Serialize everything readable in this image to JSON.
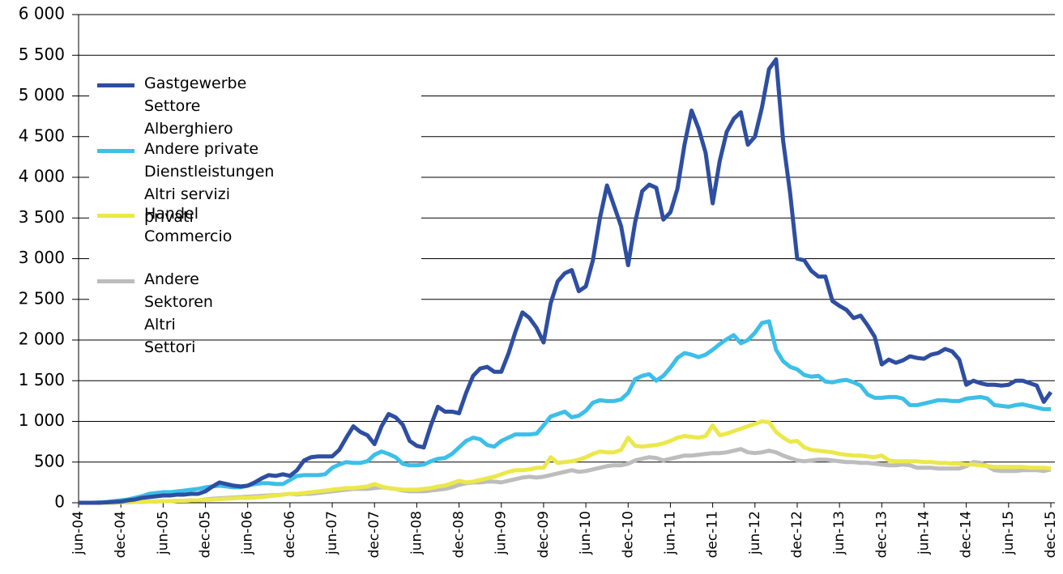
{
  "chart_data": {
    "type": "line",
    "categories": [
      "jun-04",
      null,
      null,
      null,
      null,
      null,
      "dec-04",
      null,
      null,
      null,
      null,
      null,
      "jun-05",
      null,
      null,
      null,
      null,
      null,
      "dec-05",
      null,
      null,
      null,
      null,
      null,
      "jun-06",
      null,
      null,
      null,
      null,
      null,
      "dec-06",
      null,
      null,
      null,
      null,
      null,
      "jun-07",
      null,
      null,
      null,
      null,
      null,
      "dec-07",
      null,
      null,
      null,
      null,
      null,
      "jun-08",
      null,
      null,
      null,
      null,
      null,
      "dec-08",
      null,
      null,
      null,
      null,
      null,
      "jun-09",
      null,
      null,
      null,
      null,
      null,
      "dec-09",
      null,
      null,
      null,
      null,
      null,
      "jun-10",
      null,
      null,
      null,
      null,
      null,
      "dec-10",
      null,
      null,
      null,
      null,
      null,
      "jun-11",
      null,
      null,
      null,
      null,
      null,
      "dec-11",
      null,
      null,
      null,
      null,
      null,
      "jun-12",
      null,
      null,
      null,
      null,
      null,
      "dec-12",
      null,
      null,
      null,
      null,
      null,
      "jun-13",
      null,
      null,
      null,
      null,
      null,
      "dec-13",
      null,
      null,
      null,
      null,
      null,
      "jun-14",
      null,
      null,
      null,
      null,
      null,
      "dec-14",
      null,
      null,
      null,
      null,
      null,
      "jun-15",
      null,
      null,
      null,
      null,
      null,
      "dec-15"
    ],
    "series": [
      {
        "name": "Andere Sektoren\nAltri Settori",
        "color": "#bdbdbd",
        "values": [
          0,
          0,
          0,
          0,
          0,
          0,
          5,
          5,
          10,
          10,
          15,
          15,
          20,
          20,
          25,
          25,
          30,
          30,
          40,
          50,
          55,
          60,
          65,
          70,
          75,
          80,
          85,
          90,
          95,
          100,
          110,
          100,
          110,
          110,
          120,
          130,
          140,
          150,
          160,
          170,
          170,
          170,
          180,
          190,
          180,
          170,
          150,
          140,
          140,
          140,
          150,
          160,
          170,
          190,
          220,
          240,
          250,
          250,
          260,
          260,
          250,
          270,
          290,
          310,
          320,
          310,
          320,
          340,
          360,
          380,
          400,
          380,
          390,
          410,
          430,
          450,
          460,
          460,
          480,
          520,
          540,
          560,
          550,
          520,
          540,
          560,
          580,
          580,
          590,
          600,
          610,
          610,
          620,
          640,
          660,
          620,
          610,
          620,
          640,
          620,
          580,
          550,
          520,
          510,
          520,
          530,
          530,
          520,
          510,
          500,
          500,
          490,
          490,
          480,
          470,
          460,
          460,
          470,
          460,
          430,
          430,
          430,
          420,
          420,
          420,
          420,
          450,
          500,
          490,
          450,
          400,
          390,
          390,
          390,
          400,
          400,
          400,
          390,
          410
        ]
      },
      {
        "name": "Handel\nCommercio",
        "color": "#ebe84a",
        "values": [
          0,
          0,
          0,
          0,
          0,
          5,
          5,
          10,
          10,
          15,
          15,
          20,
          20,
          20,
          25,
          25,
          30,
          30,
          35,
          40,
          45,
          50,
          55,
          60,
          60,
          65,
          70,
          80,
          90,
          100,
          110,
          110,
          120,
          130,
          140,
          150,
          160,
          170,
          180,
          180,
          190,
          200,
          230,
          200,
          180,
          170,
          160,
          160,
          160,
          170,
          180,
          200,
          210,
          240,
          270,
          250,
          260,
          280,
          300,
          320,
          350,
          380,
          400,
          400,
          410,
          430,
          430,
          560,
          490,
          500,
          510,
          530,
          560,
          600,
          630,
          620,
          620,
          650,
          800,
          700,
          690,
          700,
          710,
          730,
          760,
          800,
          820,
          810,
          800,
          820,
          950,
          830,
          850,
          880,
          910,
          940,
          970,
          1000,
          990,
          870,
          800,
          750,
          760,
          680,
          650,
          640,
          630,
          620,
          600,
          590,
          580,
          580,
          570,
          560,
          580,
          520,
          510,
          510,
          510,
          510,
          500,
          500,
          490,
          490,
          480,
          480,
          470,
          470,
          460,
          450,
          440,
          440,
          440,
          440,
          440,
          430,
          430,
          430,
          420
        ]
      },
      {
        "name": "Andere private Dienstleistungen\nAltri servizi privati",
        "color": "#3cbfe8",
        "values": [
          0,
          0,
          0,
          5,
          10,
          20,
          30,
          40,
          60,
          80,
          110,
          120,
          130,
          130,
          140,
          150,
          160,
          170,
          190,
          200,
          210,
          200,
          190,
          190,
          210,
          230,
          240,
          240,
          230,
          230,
          280,
          330,
          340,
          340,
          340,
          350,
          430,
          470,
          500,
          490,
          490,
          510,
          590,
          630,
          600,
          560,
          480,
          460,
          460,
          470,
          510,
          540,
          550,
          600,
          680,
          760,
          800,
          780,
          710,
          690,
          760,
          800,
          840,
          840,
          840,
          850,
          950,
          1060,
          1090,
          1120,
          1050,
          1070,
          1130,
          1230,
          1260,
          1250,
          1250,
          1270,
          1350,
          1520,
          1560,
          1580,
          1500,
          1560,
          1660,
          1780,
          1840,
          1820,
          1790,
          1820,
          1880,
          1950,
          2010,
          2060,
          1960,
          2000,
          2090,
          2210,
          2230,
          1880,
          1740,
          1670,
          1640,
          1570,
          1550,
          1560,
          1490,
          1480,
          1500,
          1510,
          1480,
          1440,
          1330,
          1290,
          1290,
          1300,
          1300,
          1280,
          1200,
          1200,
          1220,
          1240,
          1260,
          1260,
          1250,
          1250,
          1280,
          1290,
          1300,
          1280,
          1200,
          1190,
          1180,
          1200,
          1210,
          1190,
          1170,
          1150,
          1150
        ]
      },
      {
        "name": "Gastgewerbe\nSettore Alberghiero",
        "color": "#2e4ea1",
        "values": [
          0,
          0,
          0,
          0,
          5,
          10,
          15,
          30,
          40,
          60,
          70,
          80,
          90,
          90,
          100,
          100,
          110,
          110,
          140,
          200,
          250,
          230,
          210,
          200,
          210,
          250,
          300,
          340,
          330,
          350,
          330,
          400,
          520,
          560,
          570,
          570,
          570,
          650,
          800,
          940,
          870,
          830,
          720,
          940,
          1090,
          1050,
          960,
          760,
          700,
          680,
          950,
          1180,
          1120,
          1120,
          1100,
          1350,
          1560,
          1650,
          1670,
          1610,
          1610,
          1830,
          2100,
          2340,
          2270,
          2150,
          1970,
          2450,
          2720,
          2820,
          2860,
          2600,
          2660,
          2980,
          3500,
          3900,
          3650,
          3400,
          2920,
          3450,
          3830,
          3910,
          3870,
          3480,
          3570,
          3860,
          4400,
          4820,
          4600,
          4300,
          3680,
          4200,
          4560,
          4720,
          4800,
          4400,
          4500,
          4860,
          5330,
          5450,
          4450,
          3800,
          3000,
          2980,
          2850,
          2780,
          2780,
          2480,
          2420,
          2370,
          2270,
          2300,
          2180,
          2040,
          1700,
          1760,
          1720,
          1750,
          1800,
          1780,
          1770,
          1820,
          1840,
          1890,
          1860,
          1760,
          1450,
          1500,
          1470,
          1450,
          1450,
          1440,
          1450,
          1500,
          1500,
          1470,
          1440,
          1240,
          1360
        ]
      }
    ],
    "ylim": [
      0,
      6000
    ],
    "yticks": [
      0,
      500,
      {
        "value": 1000,
        "label": "1 000"
      },
      {
        "value": 1500,
        "label": "1 500"
      },
      {
        "value": 2000,
        "label": "2 000"
      },
      {
        "value": 2500,
        "label": "2 500"
      },
      {
        "value": 3000,
        "label": "3 000"
      },
      {
        "value": 3500,
        "label": "3 500"
      },
      {
        "value": 4000,
        "label": "4 000"
      },
      {
        "value": 4500,
        "label": "4 500"
      },
      {
        "value": 5000,
        "label": "5 000"
      },
      {
        "value": 5500,
        "label": "5 500"
      },
      {
        "value": 6000,
        "label": "6 000"
      }
    ],
    "grid": true
  }
}
